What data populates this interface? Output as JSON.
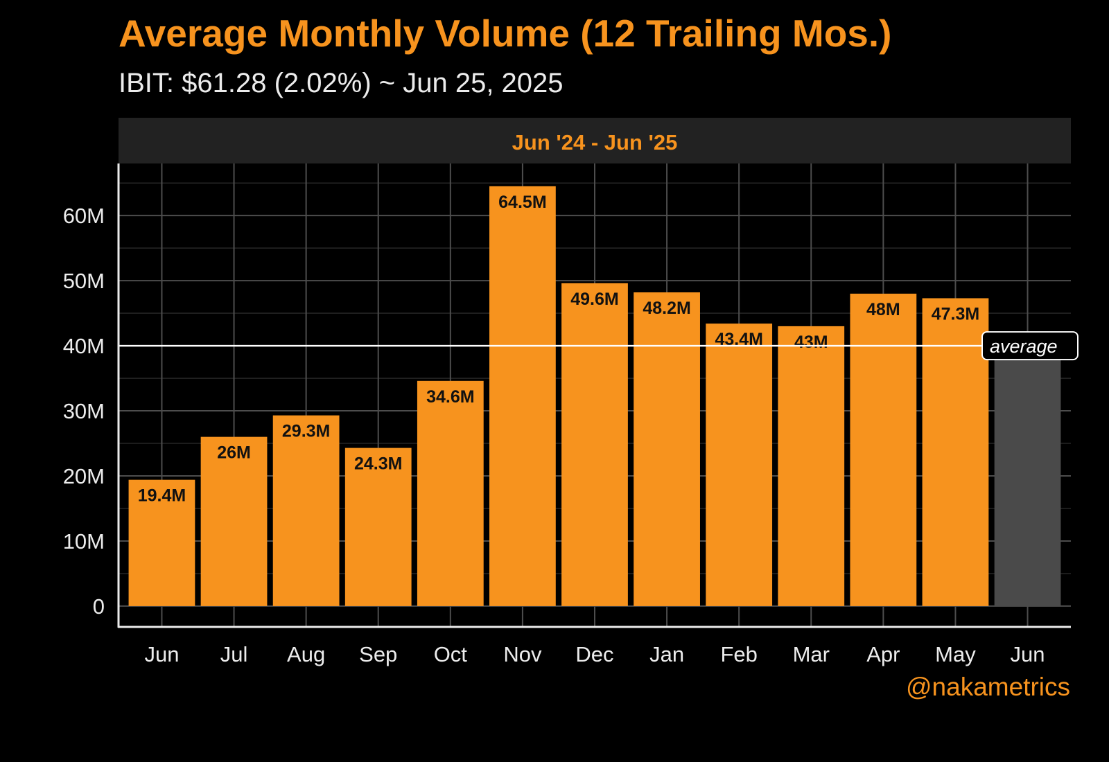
{
  "chart_data": {
    "type": "bar",
    "title": "Average Monthly Volume (12 Trailing Mos.)",
    "subtitle": "IBIT: $61.28 (2.02%) ~ Jun 25, 2025",
    "panel_label": "Jun '24 - Jun '25",
    "xlabel": "",
    "ylabel": "",
    "categories": [
      "Jun",
      "Jul",
      "Aug",
      "Sep",
      "Oct",
      "Nov",
      "Dec",
      "Jan",
      "Feb",
      "Mar",
      "Apr",
      "May",
      "Jun"
    ],
    "values": [
      19.4,
      26,
      29.3,
      24.3,
      34.6,
      64.5,
      49.6,
      48.2,
      43.4,
      43,
      48,
      47.3,
      39.5
    ],
    "data_labels": [
      "19.4M",
      "26M",
      "29.3M",
      "24.3M",
      "34.6M",
      "64.5M",
      "49.6M",
      "48.2M",
      "43.4M",
      "43M",
      "48M",
      "47.3M",
      ""
    ],
    "y_ticks": [
      0,
      10,
      20,
      30,
      40,
      50,
      60
    ],
    "y_tick_labels": [
      "0",
      "10M",
      "20M",
      "30M",
      "40M",
      "50M",
      "60M"
    ],
    "ylim": [
      -3.2,
      68
    ],
    "grid": true,
    "reference_line": {
      "value": 40,
      "label": "average"
    },
    "colors": {
      "bar": "#F7931E",
      "current_month_bar": "#4A4A4A",
      "background": "#000000",
      "panel_strip": "#222222",
      "grid": "#4D4D4D",
      "minor_grid": "#262626",
      "reference_line": "#FFFFFF",
      "text": "#ECECEC",
      "accent": "#F7931E"
    }
  },
  "credit": "@nakametrics"
}
